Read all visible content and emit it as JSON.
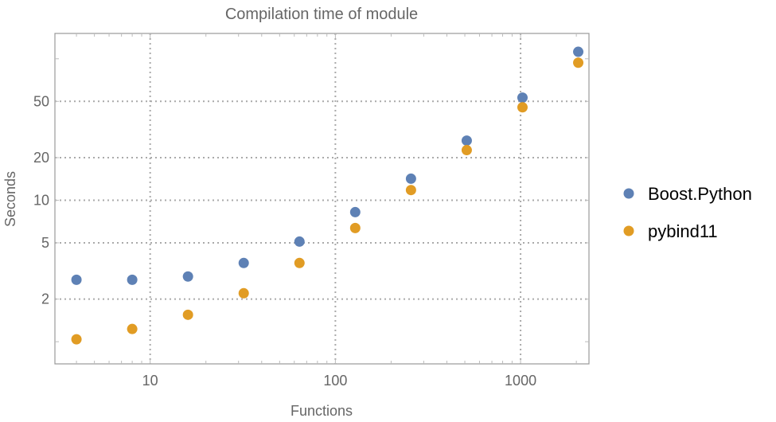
{
  "chart_data": {
    "type": "scatter",
    "title": "Compilation time of module",
    "xlabel": "Functions",
    "ylabel": "Seconds",
    "x_scale": "log",
    "y_scale": "log",
    "xlim": [
      3.06,
      2340
    ],
    "ylim": [
      0.697,
      151
    ],
    "x_ticks": [
      10,
      100,
      1000
    ],
    "x_tick_labels": [
      "10",
      "100",
      "1000"
    ],
    "y_ticks": [
      2,
      5,
      10,
      20,
      50
    ],
    "y_tick_labels": [
      "2",
      "5",
      "10",
      "20",
      "50"
    ],
    "grid": true,
    "legend_placement": "right",
    "x": [
      4,
      8,
      16,
      32,
      64,
      128,
      256,
      512,
      1024,
      2048
    ],
    "series": [
      {
        "name": "Boost.Python",
        "color": "#5E81B5",
        "values": [
          2.74,
          2.74,
          2.89,
          3.6,
          5.1,
          8.24,
          14.2,
          26.4,
          53.1,
          112
        ]
      },
      {
        "name": "pybind11",
        "color": "#E19C24",
        "values": [
          1.04,
          1.23,
          1.55,
          2.2,
          3.6,
          6.36,
          11.8,
          22.6,
          45.4,
          93.8
        ]
      }
    ]
  }
}
